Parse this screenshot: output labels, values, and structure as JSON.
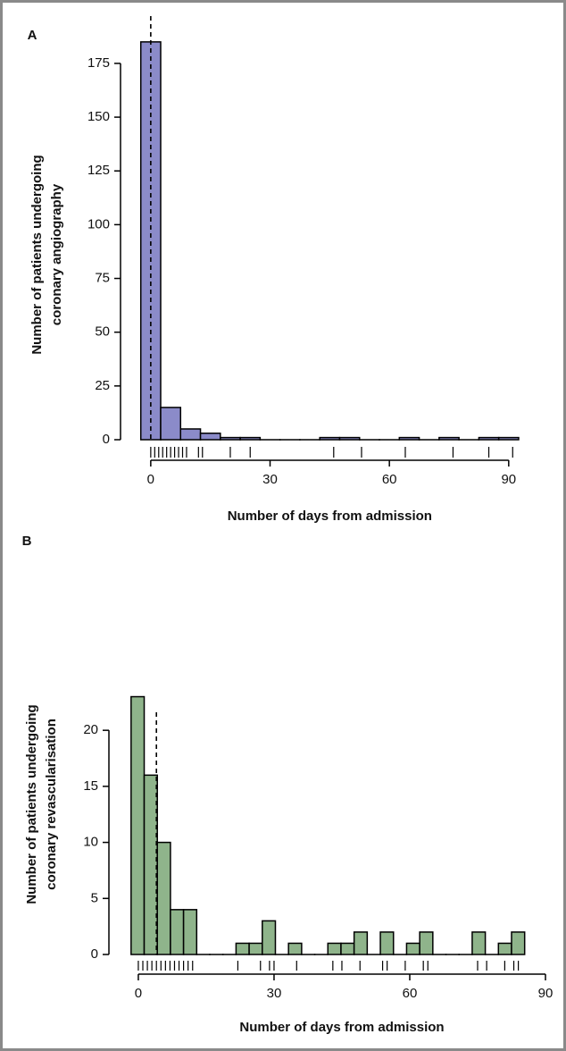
{
  "chart_data": [
    {
      "type": "histogram",
      "title": "A",
      "xlabel": "Number of days from admission",
      "ylabel": [
        "Number of patients undergoing",
        "coronary angiography"
      ],
      "bins": [
        -2.5,
        2.5,
        7.5,
        12.5,
        17.5,
        22.5,
        27.5,
        32.5,
        37.5,
        42.5,
        47.5,
        52.5,
        57.5,
        62.5,
        67.5,
        72.5,
        77.5,
        82.5,
        87.5,
        92.5
      ],
      "values": [
        185,
        15,
        5,
        3,
        1,
        1,
        0,
        0,
        0,
        1,
        1,
        0,
        0,
        1,
        0,
        1,
        0,
        1,
        1
      ],
      "color": "#8b8bc9",
      "rug": [
        0,
        1,
        2,
        3,
        4,
        5,
        6,
        7,
        8,
        9,
        12,
        13,
        20,
        25,
        46,
        53,
        64,
        76,
        85,
        91
      ],
      "reference_line": 0,
      "xlim": [
        -7.6,
        97
      ],
      "ylim": [
        0,
        197
      ],
      "xticks": [
        0,
        30,
        60,
        90
      ],
      "yticks": [
        0,
        25,
        50,
        75,
        100,
        125,
        150,
        175
      ]
    },
    {
      "type": "histogram",
      "title": "B",
      "xlabel": "Number of days from admission",
      "ylabel": [
        "Number of patients undergoing",
        "coronary revascularisation"
      ],
      "bins": [
        -1.6,
        1.3,
        4.2,
        7.1,
        10,
        12.9,
        15.8,
        18.7,
        21.6,
        24.5,
        27.4,
        30.3,
        33.2,
        36.1,
        39,
        41.9,
        44.8,
        47.7,
        50.6,
        53.5,
        56.4,
        59.3,
        62.2,
        65.1,
        68,
        70.9,
        73.8,
        76.7,
        79.6,
        82.5,
        85.4
      ],
      "values": [
        23,
        16,
        10,
        4,
        4,
        0,
        0,
        0,
        1,
        1,
        3,
        0,
        1,
        0,
        0,
        1,
        1,
        2,
        0,
        2,
        0,
        1,
        2,
        0,
        0,
        0,
        2,
        0,
        1,
        2
      ],
      "color": "#8fb48b",
      "rug": [
        0,
        1,
        2,
        3,
        4,
        5,
        6,
        7,
        8,
        9,
        10,
        11,
        12,
        22,
        27,
        29,
        30,
        35,
        43,
        45,
        49,
        54,
        55,
        59,
        63,
        64,
        75,
        77,
        81,
        83,
        84
      ],
      "reference_line": 4,
      "xlim": [
        -6.5,
        90
      ],
      "ylim": [
        0,
        24
      ],
      "xticks": [
        0,
        30,
        60,
        90
      ],
      "yticks": [
        0,
        5,
        10,
        15,
        20
      ]
    }
  ]
}
